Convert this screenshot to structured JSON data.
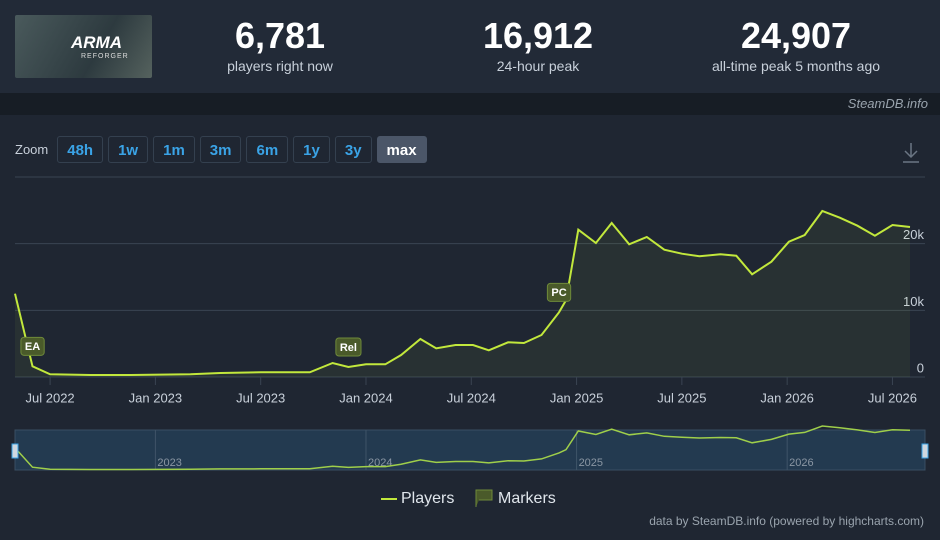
{
  "logo": "ARMA",
  "logo_sub": "REFORGER",
  "stats": [
    {
      "value": "6,781",
      "label": "players right now"
    },
    {
      "value": "16,912",
      "label": "24-hour peak"
    },
    {
      "value": "24,907",
      "label": "all-time peak 5 months ago"
    }
  ],
  "source": "SteamDB.info",
  "zoom": {
    "label": "Zoom",
    "options": [
      "48h",
      "1w",
      "1m",
      "3m",
      "6m",
      "1y",
      "3y",
      "max"
    ],
    "active": 7
  },
  "chart_data": {
    "type": "line",
    "x": [
      4,
      5,
      6,
      8.3,
      10.6,
      14,
      15.7,
      18,
      20.8,
      22.1,
      23,
      24,
      25.1,
      26,
      27.1,
      28,
      29.1,
      30.1,
      31,
      32.1,
      33,
      34,
      35,
      35.4,
      36.1,
      37.1,
      38,
      39,
      40,
      41,
      42,
      43,
      44.2,
      45.1,
      46,
      47.1,
      48.1,
      49,
      50,
      51,
      52,
      53,
      54,
      55
    ],
    "series": [
      {
        "name": "Players",
        "color": "#c2e83c",
        "values": [
          12500,
          1600,
          400,
          300,
          300,
          400,
          600,
          700,
          700,
          2100,
          1500,
          1900,
          1900,
          3300,
          5700,
          4300,
          4800,
          4800,
          4000,
          5200,
          5100,
          6300,
          9700,
          11500,
          22100,
          20100,
          23100,
          19900,
          21000,
          19100,
          18500,
          18100,
          18400,
          18200,
          15400,
          17300,
          20300,
          21300,
          24900,
          23900,
          22700,
          21200,
          22800,
          22500
        ]
      }
    ],
    "xlim": [
      4,
      55
    ],
    "xticks": [
      {
        "value": 6,
        "label": "Jul 2022"
      },
      {
        "value": 12,
        "label": "Jan 2023"
      },
      {
        "value": 18,
        "label": "Jul 2023"
      },
      {
        "value": 24,
        "label": "Jan 2024"
      },
      {
        "value": 30,
        "label": "Jul 2024"
      },
      {
        "value": 36,
        "label": "Jan 2025"
      },
      {
        "value": 42,
        "label": "Jul 2025"
      },
      {
        "value": 48,
        "label": "Jan 2026"
      },
      {
        "value": 54,
        "label": "Jul 2026"
      }
    ],
    "ylim": [
      0,
      30000
    ],
    "yticks": [
      0,
      {
        "value": 10000,
        "label": "10k"
      },
      {
        "value": 20000,
        "label": "20k"
      }
    ],
    "grid": true,
    "markers_name": "Markers",
    "markers": [
      {
        "label": "EA",
        "x": 5
      },
      {
        "label": "Rel",
        "x": 23
      },
      {
        "label": "PC",
        "x": 35
      }
    ],
    "navigator_ticks": [
      {
        "value": 12,
        "label": "2023"
      },
      {
        "value": 24,
        "label": "2024"
      },
      {
        "value": 36,
        "label": "2025"
      },
      {
        "value": 48,
        "label": "2026"
      }
    ]
  },
  "credit": "data by SteamDB.info (powered by highcharts.com)"
}
